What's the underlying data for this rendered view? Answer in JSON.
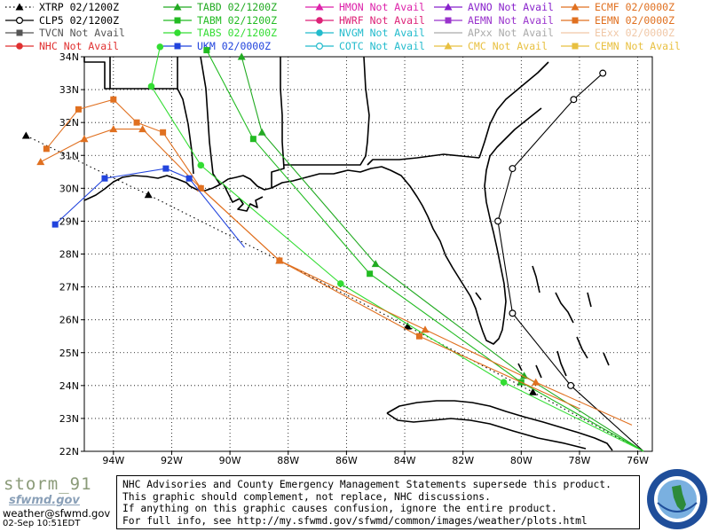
{
  "legend": [
    {
      "label": "XTRP 02/1200Z",
      "color": "#000000",
      "marker": "triangle",
      "dash": "dot"
    },
    {
      "label": "CLP5 02/1200Z",
      "color": "#000000",
      "marker": "circle-open",
      "dash": "solid"
    },
    {
      "label": "TVCN Not Avail",
      "color": "#555555",
      "marker": "square",
      "dash": "solid"
    },
    {
      "label": "NHC Not Avail",
      "color": "#e03030",
      "marker": "circle",
      "dash": "solid"
    },
    {
      "label": "TABD 02/1200Z",
      "color": "#22aa22",
      "marker": "triangle",
      "dash": "solid"
    },
    {
      "label": "TABM 02/1200Z",
      "color": "#22bb22",
      "marker": "square",
      "dash": "solid"
    },
    {
      "label": "TABS 02/1200Z",
      "color": "#33dd33",
      "marker": "circle",
      "dash": "solid"
    },
    {
      "label": "UKM 02/0000Z",
      "color": "#2244dd",
      "marker": "square",
      "dash": "solid"
    },
    {
      "label": "HMON Not Avail",
      "color": "#dd22aa",
      "marker": "triangle",
      "dash": "solid"
    },
    {
      "label": "HWRF Not Avail",
      "color": "#dd2277",
      "marker": "circle",
      "dash": "solid"
    },
    {
      "label": "NVGM Not Avail",
      "color": "#22bbcc",
      "marker": "circle",
      "dash": "solid"
    },
    {
      "label": "COTC Not Avail",
      "color": "#22bbcc",
      "marker": "circle-open",
      "dash": "solid"
    },
    {
      "label": "AVNO Not Avail",
      "color": "#8822cc",
      "marker": "triangle",
      "dash": "solid"
    },
    {
      "label": "AEMN Not Avail",
      "color": "#9933cc",
      "marker": "square",
      "dash": "solid"
    },
    {
      "label": "APxx Not Avail",
      "color": "#aaaaaa",
      "marker": "none",
      "dash": "solid"
    },
    {
      "label": "CMC Not Avail",
      "color": "#e8c040",
      "marker": "triangle",
      "dash": "solid"
    },
    {
      "label": "ECMF 02/0000Z",
      "color": "#e07020",
      "marker": "triangle",
      "dash": "solid"
    },
    {
      "label": "EEMN 02/0000Z",
      "color": "#e07020",
      "marker": "square",
      "dash": "solid"
    },
    {
      "label": "EExx 02/0000Z",
      "color": "#f0c8a8",
      "marker": "none",
      "dash": "solid"
    },
    {
      "label": "CEMN Not Avail",
      "color": "#e8c040",
      "marker": "square",
      "dash": "solid"
    }
  ],
  "map": {
    "lon_range": [
      -95,
      -75.5
    ],
    "lat_range": [
      22,
      34
    ],
    "lon_ticks": [
      {
        "v": -94,
        "t": "94W"
      },
      {
        "v": -92,
        "t": "92W"
      },
      {
        "v": -90,
        "t": "90W"
      },
      {
        "v": -88,
        "t": "88W"
      },
      {
        "v": -86,
        "t": "86W"
      },
      {
        "v": -84,
        "t": "84W"
      },
      {
        "v": -82,
        "t": "82W"
      },
      {
        "v": -80,
        "t": "80W"
      },
      {
        "v": -78,
        "t": "78W"
      },
      {
        "v": -76,
        "t": "76W"
      }
    ],
    "lat_ticks": [
      {
        "v": 34,
        "t": "34N"
      },
      {
        "v": 33,
        "t": "33N"
      },
      {
        "v": 32,
        "t": "32N"
      },
      {
        "v": 31,
        "t": "31N"
      },
      {
        "v": 30,
        "t": "30N"
      },
      {
        "v": 29,
        "t": "29N"
      },
      {
        "v": 28,
        "t": "28N"
      },
      {
        "v": 27,
        "t": "27N"
      },
      {
        "v": 26,
        "t": "26N"
      },
      {
        "v": 25,
        "t": "25N"
      },
      {
        "v": 24,
        "t": "24N"
      },
      {
        "v": 23,
        "t": "23N"
      },
      {
        "v": 22,
        "t": "22N"
      }
    ]
  },
  "tracks": [
    {
      "name": "XTRP",
      "color": "#000000",
      "marker": "triangle",
      "dash": "dot",
      "points": [
        [
          -75.8,
          22.0
        ],
        [
          -79.6,
          23.8
        ],
        [
          -83.9,
          25.8
        ],
        [
          -88.3,
          27.8
        ],
        [
          -92.8,
          29.8
        ],
        [
          -97.0,
          31.6
        ]
      ]
    },
    {
      "name": "CLP5",
      "color": "#000000",
      "marker": "circle-open",
      "dash": "solid",
      "points": [
        [
          -75.8,
          22.0
        ],
        [
          -78.3,
          24.0
        ],
        [
          -80.3,
          26.2
        ],
        [
          -80.8,
          29.0
        ],
        [
          -80.3,
          30.6
        ],
        [
          -78.2,
          32.7
        ],
        [
          -77.2,
          33.5
        ]
      ]
    },
    {
      "name": "TABD",
      "color": "#22aa22",
      "marker": "triangle",
      "dash": "solid",
      "points": [
        [
          -75.8,
          22.0
        ],
        [
          -79.9,
          24.3
        ],
        [
          -85.0,
          27.7
        ],
        [
          -88.9,
          31.7
        ],
        [
          -89.6,
          34.0
        ]
      ]
    },
    {
      "name": "TABM",
      "color": "#22bb22",
      "marker": "square",
      "dash": "solid",
      "points": [
        [
          -75.8,
          22.0
        ],
        [
          -80.0,
          24.1
        ],
        [
          -85.2,
          27.4
        ],
        [
          -89.2,
          31.5
        ],
        [
          -90.8,
          34.2
        ]
      ]
    },
    {
      "name": "TABS",
      "color": "#33dd33",
      "marker": "circle",
      "dash": "solid",
      "points": [
        [
          -75.8,
          22.0
        ],
        [
          -80.6,
          24.1
        ],
        [
          -86.2,
          27.1
        ],
        [
          -91.0,
          30.7
        ],
        [
          -92.7,
          33.1
        ],
        [
          -92.4,
          34.3
        ]
      ]
    },
    {
      "name": "ECMF",
      "color": "#e07020",
      "marker": "triangle",
      "dash": "solid",
      "points": [
        [
          -76.2,
          22.8
        ],
        [
          -79.5,
          24.1
        ],
        [
          -83.3,
          25.7
        ],
        [
          -88.3,
          27.8
        ],
        [
          -91.0,
          30.0
        ],
        [
          -93.0,
          31.8
        ],
        [
          -94.0,
          31.8
        ],
        [
          -95.0,
          31.5
        ],
        [
          -96.5,
          30.8
        ]
      ]
    },
    {
      "name": "EEMN",
      "color": "#e07020",
      "marker": "square",
      "dash": "solid",
      "points": [
        [
          -78.0,
          23.3
        ],
        [
          -83.5,
          25.5
        ],
        [
          -88.3,
          27.8
        ],
        [
          -91.0,
          30.0
        ],
        [
          -92.3,
          31.7
        ],
        [
          -93.2,
          32.0
        ],
        [
          -94.0,
          32.7
        ],
        [
          -95.2,
          32.4
        ],
        [
          -96.3,
          31.2
        ]
      ]
    },
    {
      "name": "UKM",
      "color": "#2244dd",
      "marker": "square",
      "dash": "solid",
      "points": [
        [
          -89.5,
          28.2
        ],
        [
          -91.4,
          30.3
        ],
        [
          -92.2,
          30.6
        ],
        [
          -94.3,
          30.3
        ],
        [
          -96.0,
          28.9
        ]
      ]
    }
  ],
  "branding": {
    "name": "storm_91",
    "site": "sfwmd.gov",
    "email": "weather@sfwmd.gov",
    "stamp": "02-Sep 10:51EDT"
  },
  "disclaimer": [
    "NHC Advisories and County Emergency Management Statements supersede this product.",
    "This graphic should complement, not replace, NHC discussions.",
    "If anything on this graphic causes confusion, ignore the entire product.",
    "For full info, see  http://my.sfwmd.gov/sfwmd/common/images/weather/plots.html"
  ]
}
